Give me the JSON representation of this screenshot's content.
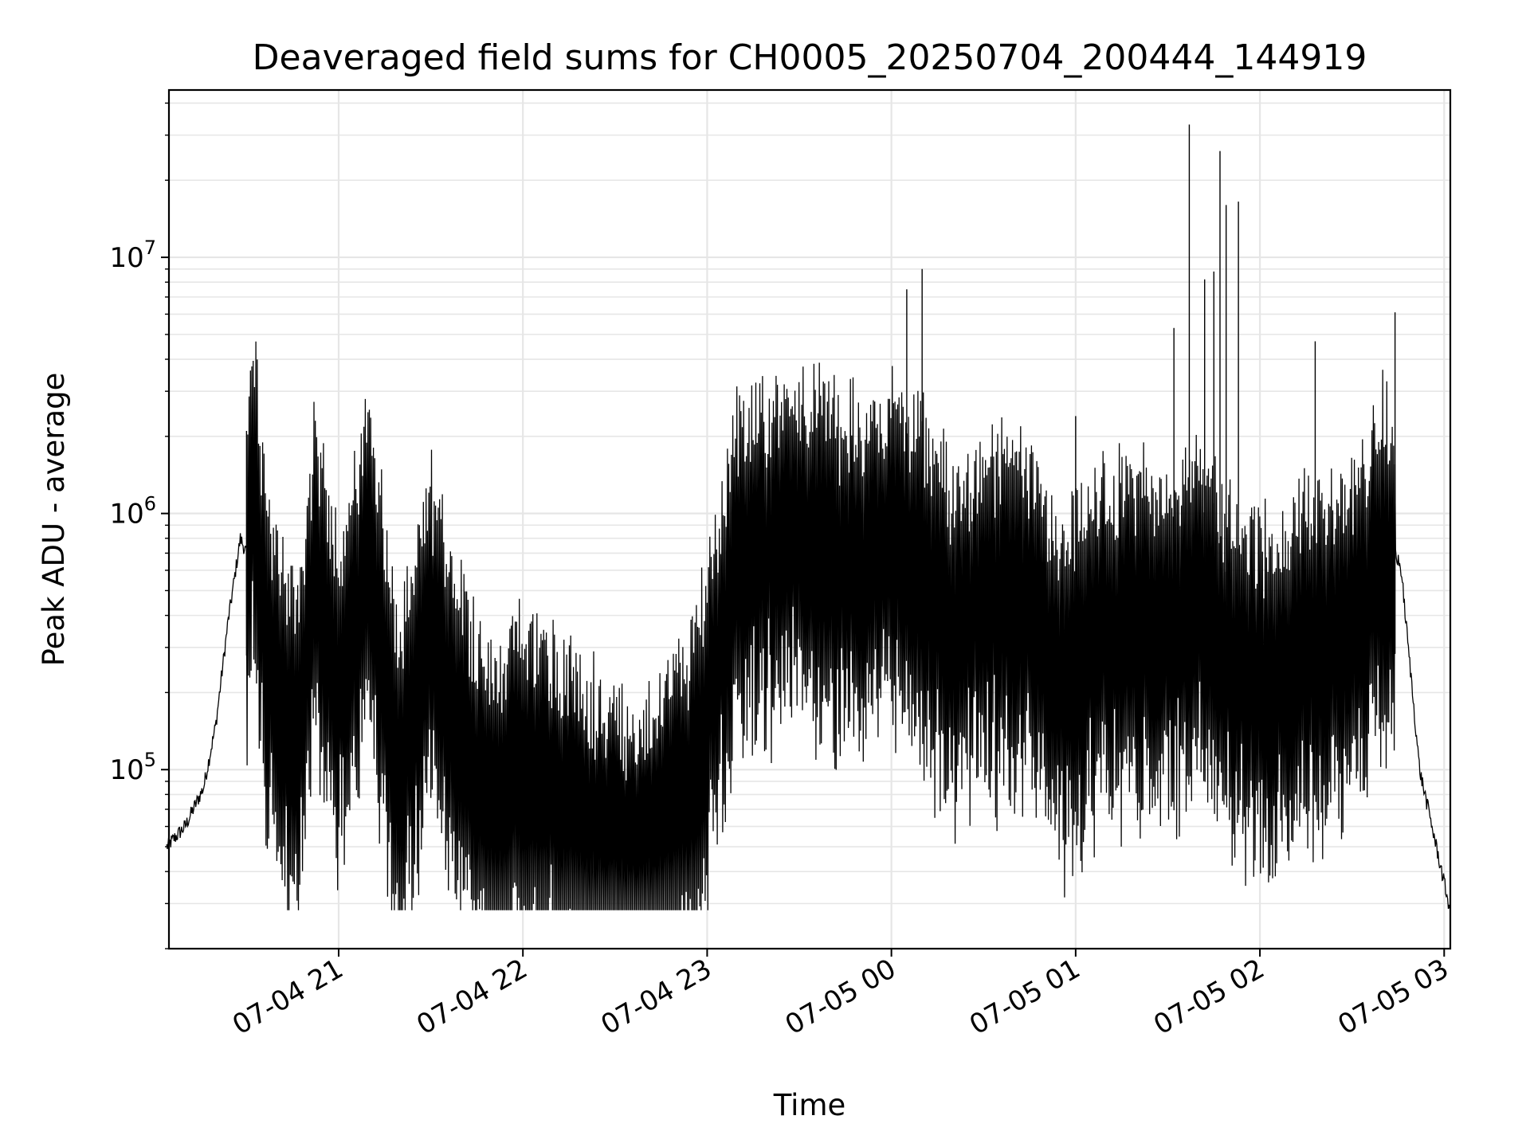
{
  "chart_data": {
    "type": "line",
    "title": "Deaveraged field sums for CH0005_20250704_200444_144919",
    "xlabel": "Time",
    "ylabel": "Peak ADU - average",
    "yscale": "log",
    "grid": true,
    "line_color": "#000000",
    "xlim": [
      "2025-07-04 20:04:44",
      "2025-07-05 03:02:00"
    ],
    "ylim": [
      20000,
      45000000
    ],
    "x_ticks": [
      {
        "value": "2025-07-04 21:00",
        "label": "07-04 21"
      },
      {
        "value": "2025-07-04 22:00",
        "label": "07-04 22"
      },
      {
        "value": "2025-07-04 23:00",
        "label": "07-04 23"
      },
      {
        "value": "2025-07-05 00:00",
        "label": "07-05 00"
      },
      {
        "value": "2025-07-05 01:00",
        "label": "07-05 01"
      },
      {
        "value": "2025-07-05 02:00",
        "label": "07-05 02"
      },
      {
        "value": "2025-07-05 03:00",
        "label": "07-05 03"
      }
    ],
    "y_ticks": [
      {
        "value": 100000,
        "base": "10",
        "exp": "5"
      },
      {
        "value": 1000000,
        "base": "10",
        "exp": "6"
      },
      {
        "value": 10000000,
        "base": "10",
        "exp": "7"
      }
    ],
    "series": [
      {
        "x": [
          "2025-07-04 20:04",
          "2025-07-04 20:10",
          "2025-07-04 20:16",
          "2025-07-04 20:20",
          "2025-07-04 20:24",
          "2025-07-04 20:28",
          "2025-07-04 20:30",
          "2025-07-04 20:32",
          "2025-07-04 20:36",
          "2025-07-04 20:40",
          "2025-07-04 20:44",
          "2025-07-04 20:48",
          "2025-07-04 20:52",
          "2025-07-04 21:00",
          "2025-07-04 21:10",
          "2025-07-04 21:20",
          "2025-07-04 21:30",
          "2025-07-04 21:40",
          "2025-07-04 21:50",
          "2025-07-04 22:00",
          "2025-07-04 22:20",
          "2025-07-04 22:40",
          "2025-07-04 22:55",
          "2025-07-04 23:10",
          "2025-07-04 23:30",
          "2025-07-04 23:45",
          "2025-07-04 23:55",
          "2025-07-05 00:05",
          "2025-07-05 00:20",
          "2025-07-05 00:40",
          "2025-07-05 00:55",
          "2025-07-05 01:10",
          "2025-07-05 01:30",
          "2025-07-05 01:40",
          "2025-07-05 01:50",
          "2025-07-05 02:00",
          "2025-07-05 02:15",
          "2025-07-05 02:30",
          "2025-07-05 02:40",
          "2025-07-05 02:46",
          "2025-07-05 02:52",
          "2025-07-05 03:02"
        ],
        "y": [
          50000,
          60000,
          85000,
          150000,
          380000,
          800000,
          700000,
          2100000,
          500000,
          300000,
          180000,
          250000,
          800000,
          300000,
          1000000,
          120000,
          500000,
          200000,
          90000,
          150000,
          80000,
          60000,
          120000,
          900000,
          1200000,
          900000,
          1000000,
          1100000,
          500000,
          700000,
          300000,
          500000,
          500000,
          600000,
          400000,
          300000,
          400000,
          500000,
          1000000,
          600000,
          100000,
          28000
        ]
      }
    ],
    "spikes": [
      {
        "x": "2025-07-04 20:30",
        "y": 2100000
      },
      {
        "x": "2025-07-05 00:05",
        "y": 7500000
      },
      {
        "x": "2025-07-05 00:10",
        "y": 9000000
      },
      {
        "x": "2025-07-05 01:00",
        "y": 2400000
      },
      {
        "x": "2025-07-05 01:32",
        "y": 5300000
      },
      {
        "x": "2025-07-05 01:37",
        "y": 33000000
      },
      {
        "x": "2025-07-05 01:42",
        "y": 8200000
      },
      {
        "x": "2025-07-05 01:45",
        "y": 8800000
      },
      {
        "x": "2025-07-05 01:47",
        "y": 26000000
      },
      {
        "x": "2025-07-05 01:49",
        "y": 16000000
      },
      {
        "x": "2025-07-05 01:53",
        "y": 16500000
      },
      {
        "x": "2025-07-05 02:18",
        "y": 4700000
      },
      {
        "x": "2025-07-05 02:44",
        "y": 6100000
      }
    ]
  }
}
